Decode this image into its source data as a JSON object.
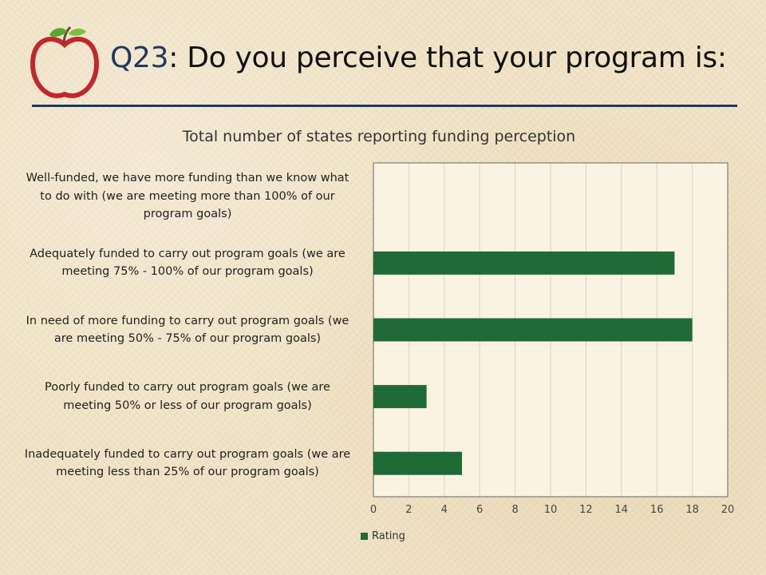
{
  "slide": {
    "question_number": "Q23",
    "question_text": ": Do you perceive that your program is:"
  },
  "colors": {
    "bar": "#1e6b37",
    "title_accent": "#1f3864",
    "apple_red": "#c0282d",
    "leaf": "#5aa832"
  },
  "chart_data": {
    "type": "bar",
    "orientation": "horizontal",
    "title": "Total number of states reporting funding perception",
    "categories": [
      "Well-funded, we have more funding than we know what to do with (we are meeting more than 100% of our program goals)",
      "Adequately funded to carry out program goals (we are meeting 75% - 100% of our program goals)",
      "In need of more funding to carry out program goals (we are meeting 50% - 75% of our program goals)",
      "Poorly funded to carry out program goals (we are meeting 50% or less of our program goals)",
      "Inadequately funded to carry out program goals (we are meeting less than 25% of our program goals)"
    ],
    "category_lines": [
      [
        "Well-funded, we have more funding than we know what",
        "to do with (we are meeting more than 100% of our",
        "program goals)"
      ],
      [
        "Adequately funded to carry out program goals (we are",
        "meeting 75% - 100% of our program goals)"
      ],
      [
        "In need of more funding to carry out program goals (we",
        "are meeting 50% - 75% of our program goals)"
      ],
      [
        "Poorly funded to carry out program goals (we are",
        "meeting 50% or less of our program goals)"
      ],
      [
        "Inadequately funded to carry out program goals (we are",
        "meeting less than 25% of our program goals)"
      ]
    ],
    "series": [
      {
        "name": "Rating",
        "values": [
          0,
          17,
          18,
          3,
          5
        ]
      }
    ],
    "xlim": [
      0,
      20
    ],
    "xticks": [
      "0",
      "2",
      "4",
      "6",
      "8",
      "10",
      "12",
      "14",
      "16",
      "18",
      "20"
    ],
    "grid": true,
    "legend": "bottom"
  }
}
